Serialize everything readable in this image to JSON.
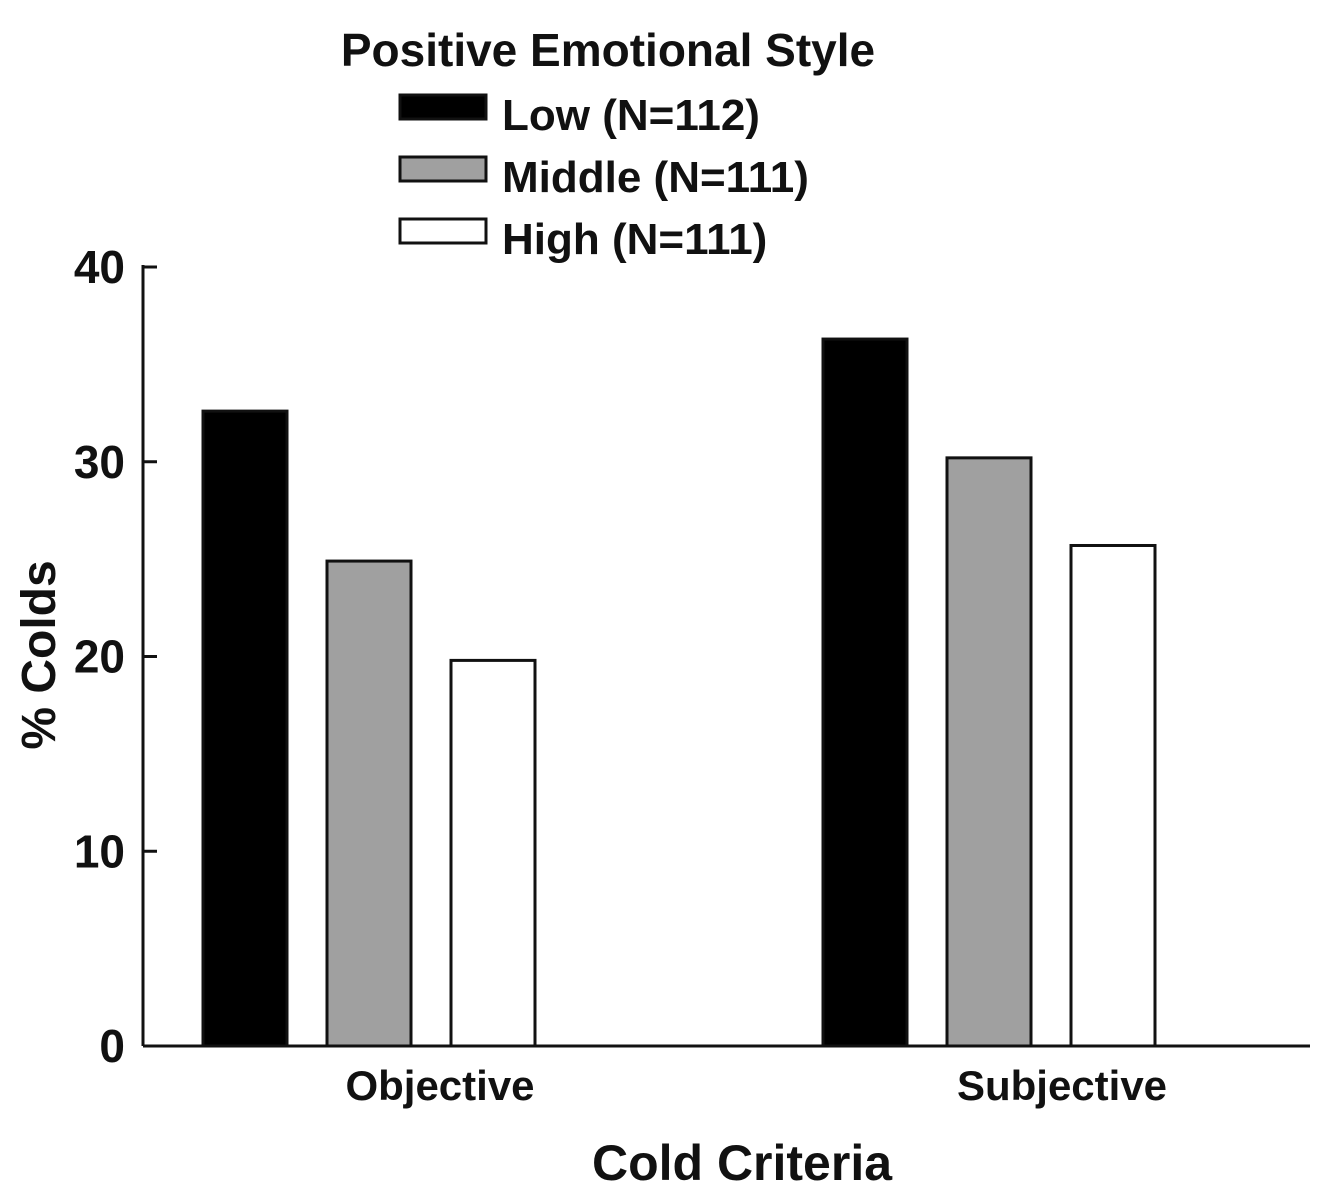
{
  "chart_data": {
    "type": "bar",
    "title": "Positive Emotional Style",
    "xlabel": "Cold Criteria",
    "ylabel": "% Colds",
    "ylim": [
      0,
      40
    ],
    "yticks": [
      "0",
      "10",
      "20",
      "30",
      "40"
    ],
    "categories": [
      "Objective",
      "Subjective"
    ],
    "legend_position": "top",
    "grid": false,
    "series": [
      {
        "name": "Low (N=112)",
        "color": "#000000",
        "values": [
          32.6,
          36.3
        ]
      },
      {
        "name": "Middle (N=111)",
        "color": "#a0a0a0",
        "values": [
          24.9,
          30.2
        ]
      },
      {
        "name": "High (N=111)",
        "color": "#ffffff",
        "values": [
          19.8,
          25.7
        ]
      }
    ]
  }
}
